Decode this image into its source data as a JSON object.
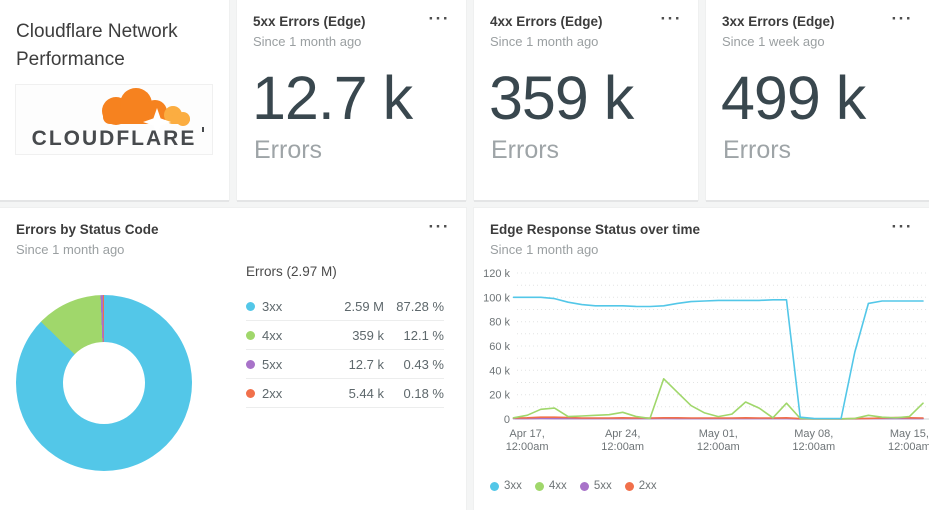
{
  "colors": {
    "cyan": "#53C7E8",
    "green": "#A0D76B",
    "purple": "#A873C9",
    "orange": "#F1704B",
    "logo_orange": "#F6821F",
    "logo_light_orange": "#FBAD41",
    "stat_text": "#39474E",
    "page_bg": "#F4F5F5"
  },
  "menu_icon": "···",
  "header_card": {
    "title_line1": "Cloudflare Network",
    "title_line2": "Performance",
    "logo_wordmark": "CLOUDFLARE"
  },
  "stat_cards": [
    {
      "title": "5xx Errors (Edge)",
      "subtitle": "Since 1 month ago",
      "value": "12.7 k",
      "label": "Errors"
    },
    {
      "title": "4xx Errors (Edge)",
      "subtitle": "Since 1 month ago",
      "value": "359 k",
      "label": "Errors"
    },
    {
      "title": "3xx Errors (Edge)",
      "subtitle": "Since 1 week ago",
      "value": "499 k",
      "label": "Errors"
    }
  ],
  "donut_card": {
    "title": "Errors by Status Code",
    "subtitle": "Since 1 month ago"
  },
  "line_card": {
    "title": "Edge Response Status over time",
    "subtitle": "Since 1 month ago"
  },
  "chart_data": [
    {
      "type": "pie",
      "title": "Errors by Status Code",
      "period": "Since 1 month ago",
      "total_label": "Errors (2.97 M)",
      "donut_hole_ratio": 0.465,
      "start_angle_deg": 0,
      "direction": "clockwise",
      "slices": [
        {
          "label": "3xx",
          "value": 2590000,
          "value_label": "2.59 M",
          "percent": 87.28,
          "percent_label": "87.28 %",
          "color": "#53C7E8"
        },
        {
          "label": "4xx",
          "value": 359000,
          "value_label": "359 k",
          "percent": 12.1,
          "percent_label": "12.1 %",
          "color": "#A0D76B"
        },
        {
          "label": "5xx",
          "value": 12700,
          "value_label": "12.7 k",
          "percent": 0.43,
          "percent_label": "0.43 %",
          "color": "#A873C9"
        },
        {
          "label": "2xx",
          "value": 5440,
          "value_label": "5.44 k",
          "percent": 0.18,
          "percent_label": "0.18 %",
          "color": "#F1704B"
        }
      ]
    },
    {
      "type": "line",
      "title": "Edge Response Status over time",
      "period": "Since 1 month ago",
      "grid": "dotted, horizontal every 10k",
      "ylim": [
        0,
        120000
      ],
      "y_tick_labels": [
        "0",
        "20 k",
        "40 k",
        "60 k",
        "80 k",
        "100 k",
        "120 k"
      ],
      "x_range": [
        "Apr 16",
        "May 16"
      ],
      "x_ticks": [
        {
          "day_index": 1,
          "line1": "Apr 17,",
          "line2": "12:00am"
        },
        {
          "day_index": 8,
          "line1": "Apr 24,",
          "line2": "12:00am"
        },
        {
          "day_index": 15,
          "line1": "May 01,",
          "line2": "12:00am"
        },
        {
          "day_index": 22,
          "line1": "May 08,",
          "line2": "12:00am"
        },
        {
          "day_index": 29,
          "line1": "May 15,",
          "line2": "12:00am"
        }
      ],
      "legend": [
        "3xx",
        "4xx",
        "5xx",
        "2xx"
      ],
      "legend_position": "bottom-left",
      "series": [
        {
          "name": "3xx",
          "color": "#53C7E8",
          "values": [
            100000,
            100000,
            100000,
            99000,
            96000,
            94000,
            93000,
            93000,
            93000,
            92500,
            92500,
            93000,
            95000,
            96500,
            97000,
            97500,
            97500,
            97500,
            97500,
            98000,
            98000,
            1500,
            500,
            400,
            400,
            55000,
            95000,
            97000,
            97000,
            97000,
            97000
          ]
        },
        {
          "name": "4xx",
          "color": "#A0D76B",
          "values": [
            1000,
            3000,
            8000,
            9000,
            2000,
            2500,
            3000,
            3500,
            5500,
            2000,
            500,
            33000,
            22000,
            11000,
            5000,
            2000,
            4000,
            14000,
            9000,
            1000,
            13000,
            500,
            200,
            200,
            200,
            500,
            3000,
            1500,
            1000,
            2000,
            13000
          ]
        },
        {
          "name": "5xx",
          "color": "#A873C9",
          "values": [
            300,
            300,
            400,
            300,
            300,
            300,
            300,
            300,
            300,
            300,
            300,
            400,
            300,
            300,
            300,
            300,
            300,
            300,
            300,
            300,
            300,
            100,
            100,
            100,
            100,
            200,
            300,
            300,
            300,
            300,
            300
          ]
        },
        {
          "name": "2xx",
          "color": "#F1704B",
          "values": [
            800,
            1000,
            1500,
            1500,
            1200,
            800,
            800,
            800,
            1000,
            800,
            800,
            1000,
            1000,
            800,
            800,
            800,
            800,
            1000,
            800,
            800,
            1000,
            300,
            200,
            200,
            200,
            300,
            500,
            800,
            1200,
            1000,
            800
          ]
        }
      ]
    }
  ]
}
